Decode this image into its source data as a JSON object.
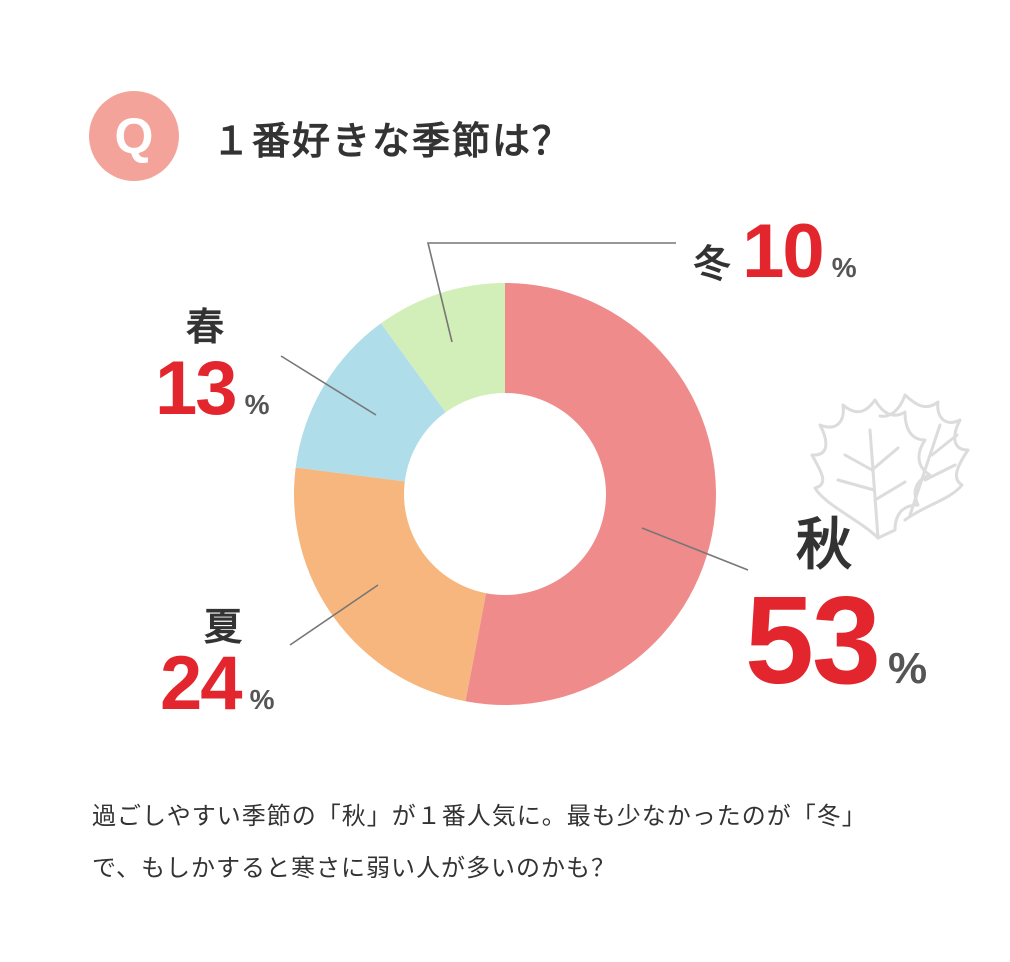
{
  "header": {
    "badge": "Q",
    "title": "１番好きな季節は？"
  },
  "chart_data": {
    "type": "pie",
    "donut": true,
    "start": "12 o'clock, clockwise",
    "slices": [
      {
        "label": "秋",
        "value": 53,
        "color": "#ef8b8b"
      },
      {
        "label": "夏",
        "value": 24,
        "color": "#f6b67d"
      },
      {
        "label": "春",
        "value": 13,
        "color": "#afdde9"
      },
      {
        "label": "冬",
        "value": 10,
        "color": "#d2efb9"
      }
    ],
    "unit": "%"
  },
  "decoration": {
    "icon": "leaf-icon",
    "color": "#d9d9d9"
  },
  "caption": {
    "line1": "過ごしやすい季節の「秋」が１番人気に。最も少なかったのが「冬」",
    "line2": "で、もしかすると寒さに弱い人が多いのかも？"
  }
}
